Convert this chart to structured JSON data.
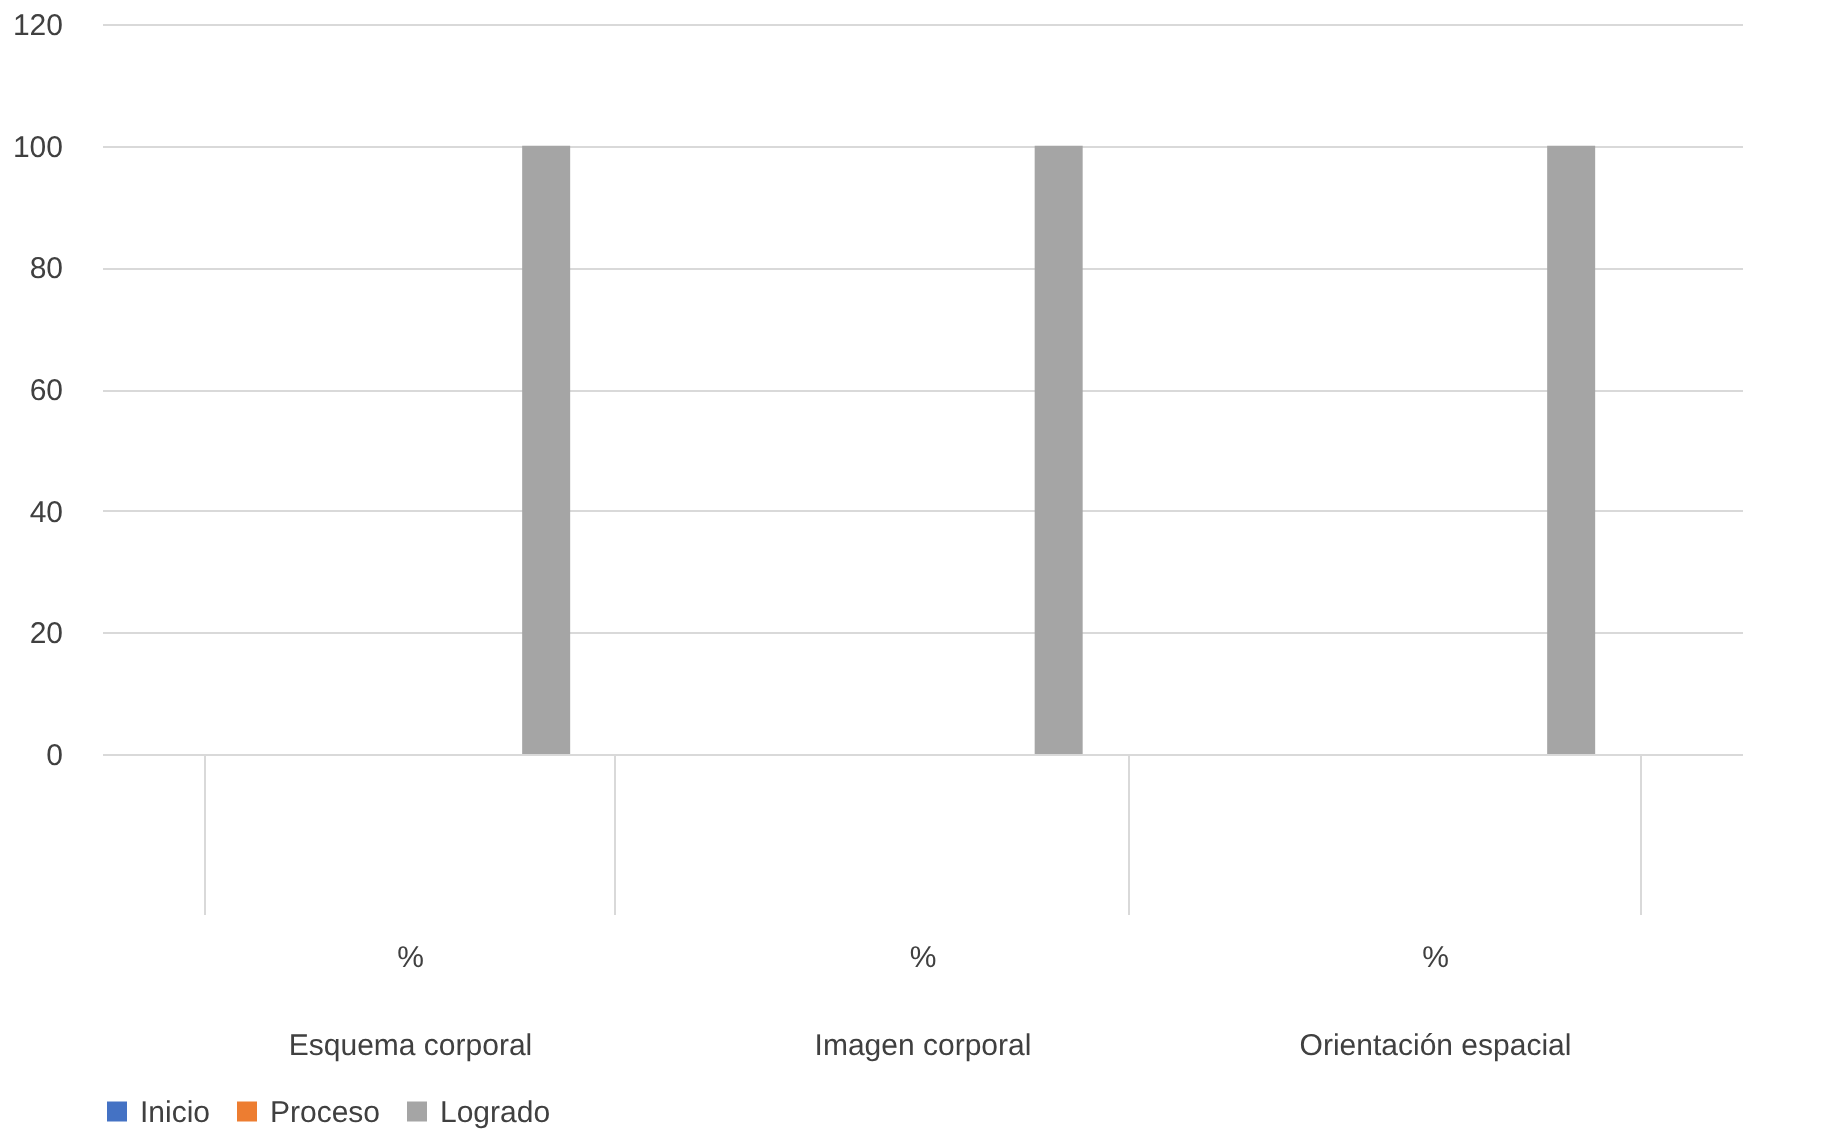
{
  "chart_data": {
    "type": "bar",
    "categories": [
      "%\nEsquema corporal",
      "%\nImagen corporal",
      "%\nOrientación espacial"
    ],
    "series": [
      {
        "name": "Inicio",
        "color": "#4472c4",
        "values": [
          0,
          0,
          0
        ]
      },
      {
        "name": "Proceso",
        "color": "#ed7d31",
        "values": [
          0,
          0,
          0
        ]
      },
      {
        "name": "Logrado",
        "color": "#a5a5a5",
        "values": [
          100,
          100,
          100
        ]
      }
    ],
    "ylim": [
      0,
      120
    ],
    "yticks": [
      0,
      20,
      40,
      60,
      80,
      100,
      120
    ],
    "grid": "y",
    "legend": "bottom"
  }
}
